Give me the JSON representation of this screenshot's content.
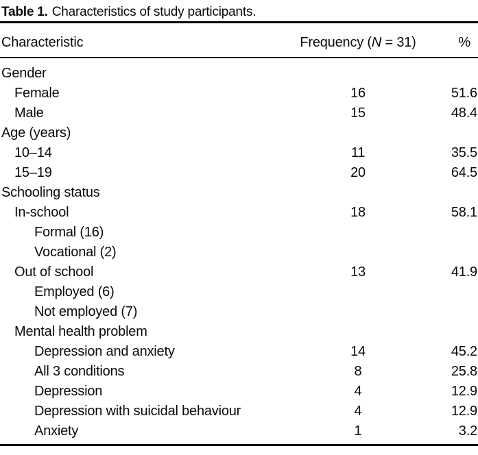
{
  "title": {
    "label": "Table 1.",
    "text": "Characteristics of study participants."
  },
  "table": {
    "header": {
      "characteristic": "Characteristic",
      "frequency_pre": "Frequency (",
      "frequency_n": "N",
      "frequency_post": " = 31)",
      "percent": "%"
    },
    "rows": [
      {
        "label": "Gender",
        "freq": "",
        "pct": "",
        "indent": 0
      },
      {
        "label": "Female",
        "freq": "16",
        "pct": "51.6",
        "indent": 1
      },
      {
        "label": "Male",
        "freq": "15",
        "pct": "48.4",
        "indent": 1
      },
      {
        "label": "Age (years)",
        "freq": "",
        "pct": "",
        "indent": 0
      },
      {
        "label": "10–14",
        "freq": "11",
        "pct": "35.5",
        "indent": 1
      },
      {
        "label": "15–19",
        "freq": "20",
        "pct": "64.5",
        "indent": 1
      },
      {
        "label": "Schooling status",
        "freq": "",
        "pct": "",
        "indent": 0
      },
      {
        "label": "In-school",
        "freq": "18",
        "pct": "58.1",
        "indent": 1
      },
      {
        "label": "Formal (16)",
        "freq": "",
        "pct": "",
        "indent": 2
      },
      {
        "label": "Vocational (2)",
        "freq": "",
        "pct": "",
        "indent": 2
      },
      {
        "label": "Out of school",
        "freq": "13",
        "pct": "41.9",
        "indent": 1
      },
      {
        "label": "Employed (6)",
        "freq": "",
        "pct": "",
        "indent": 2
      },
      {
        "label": "Not employed (7)",
        "freq": "",
        "pct": "",
        "indent": 2
      },
      {
        "label": "Mental health problem",
        "freq": "",
        "pct": "",
        "indent": 1
      },
      {
        "label": "Depression and anxiety",
        "freq": "14",
        "pct": "45.2",
        "indent": 2
      },
      {
        "label": "All 3 conditions",
        "freq": "8",
        "pct": "25.8",
        "indent": 2
      },
      {
        "label": "Depression",
        "freq": "4",
        "pct": "12.9",
        "indent": 2
      },
      {
        "label": "Depression with suicidal behaviour",
        "freq": "4",
        "pct": "12.9",
        "indent": 2
      },
      {
        "label": "Anxiety",
        "freq": "1",
        "pct": "3.2",
        "indent": 2
      }
    ]
  }
}
